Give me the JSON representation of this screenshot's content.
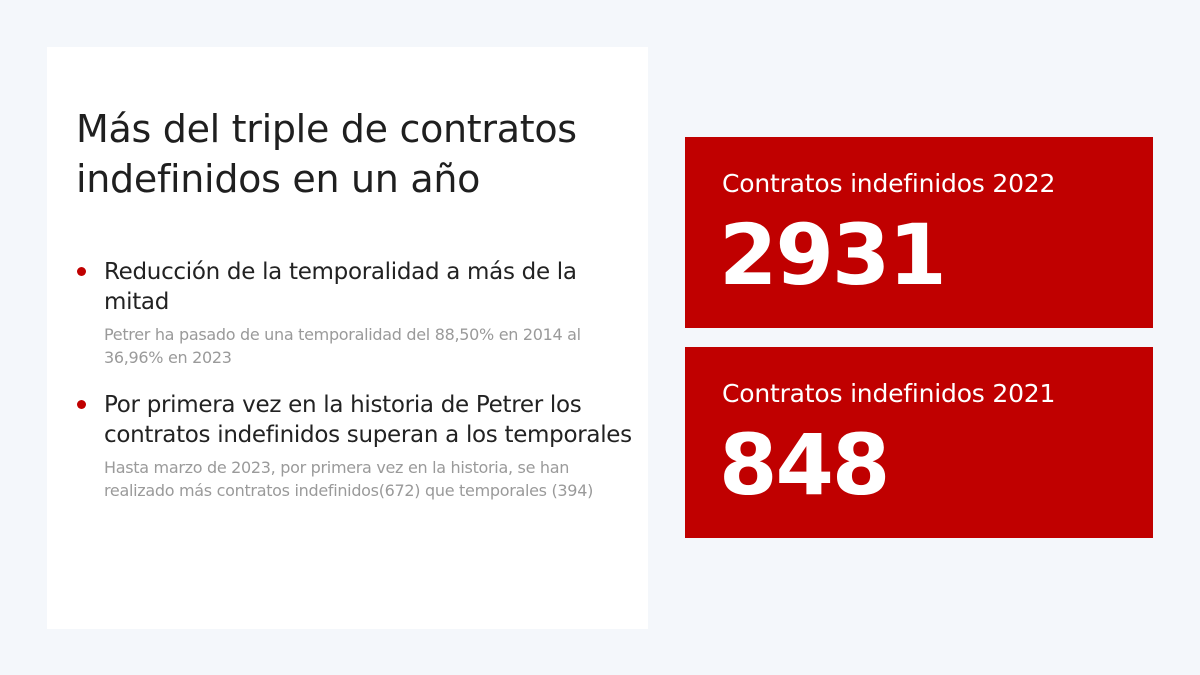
{
  "slide": {
    "title": "Más del triple de contratos indefinidos en un año",
    "bullets": [
      {
        "title": "Reducción de la temporalidad a más de la mitad",
        "description": "Petrer ha pasado de una temporalidad del 88,50% en 2014 al 36,96% en 2023"
      },
      {
        "title": "Por primera vez en la historia de Petrer los contratos indefinidos superan a los temporales",
        "description": "Hasta marzo de 2023, por primera vez en la historia, se han realizado más contratos indefinidos(672) que temporales (394)"
      }
    ]
  },
  "stats": [
    {
      "label": "Contratos indefinidos 2022",
      "value": "2931"
    },
    {
      "label": "Contratos indefinidos 2021",
      "value": "848"
    }
  ],
  "colors": {
    "accent": "#c00000",
    "background": "#f4f7fb",
    "card": "#ffffff",
    "title_text": "#1f1f1f",
    "muted_text": "#9a9a9a"
  }
}
